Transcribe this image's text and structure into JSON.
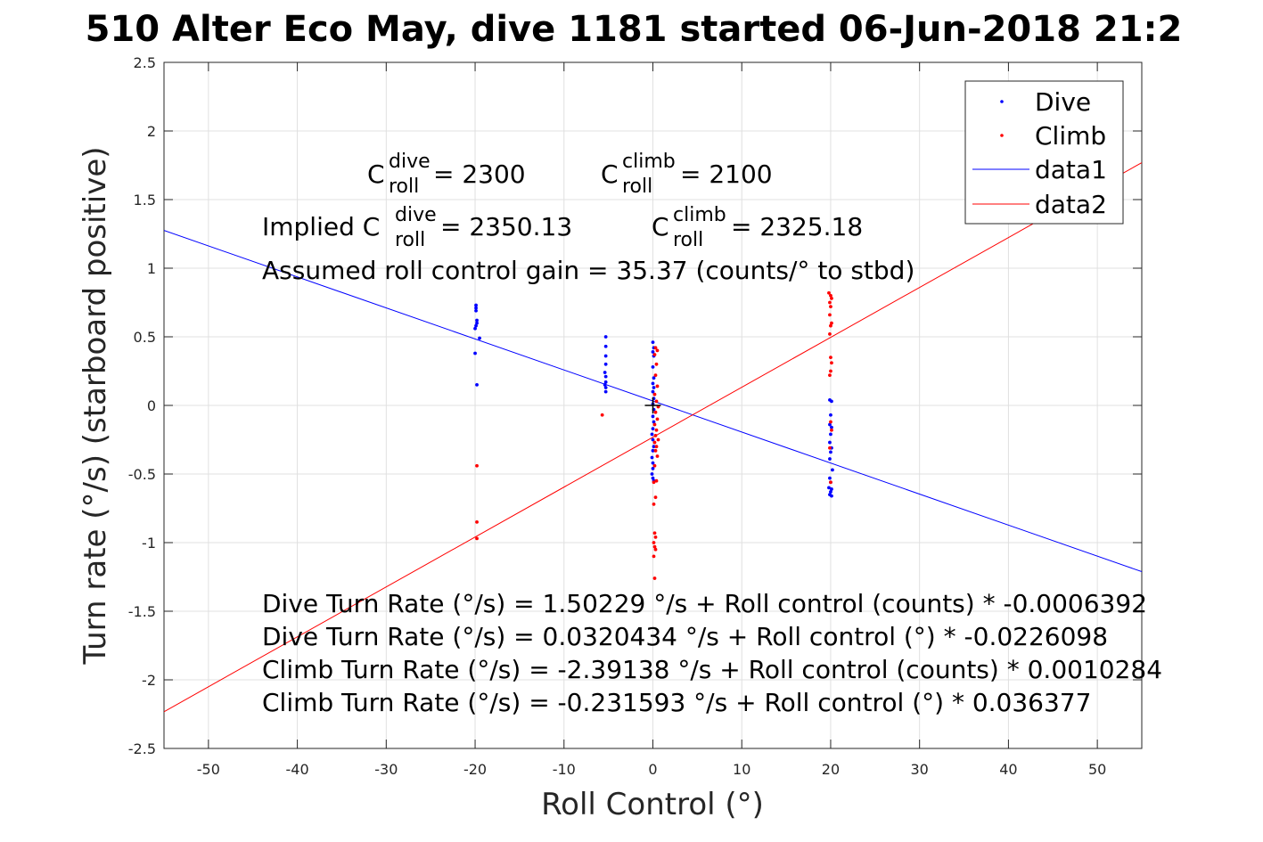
{
  "chart_data": {
    "type": "scatter",
    "title": "510 Alter Eco May, dive 1181 started 06-Jun-2018 21:2",
    "xlabel": "Roll Control (°)",
    "ylabel": "Turn rate (°/s) (starboard positive)",
    "xlim": [
      -55,
      55
    ],
    "ylim": [
      -2.5,
      2.5
    ],
    "xticks": [
      -50,
      -40,
      -30,
      -20,
      -10,
      0,
      10,
      20,
      30,
      40,
      50
    ],
    "yticks": [
      -2.5,
      -2,
      -1.5,
      -1,
      -0.5,
      0,
      0.5,
      1,
      1.5,
      2,
      2.5
    ],
    "grid": true,
    "legend_position": "top-right",
    "legend": [
      "Dive",
      "Climb",
      "data1",
      "data2"
    ],
    "colors": {
      "dive": "#0000ff",
      "climb": "#ff0000",
      "axis": "#262626",
      "grid": "#e0e0e0"
    },
    "series": [
      {
        "name": "Dive",
        "kind": "points",
        "points": [
          [
            -19.9,
            0.73
          ],
          [
            -19.9,
            0.71
          ],
          [
            -19.9,
            0.69
          ],
          [
            -19.8,
            0.62
          ],
          [
            -19.8,
            0.6
          ],
          [
            -19.9,
            0.58
          ],
          [
            -20.0,
            0.56
          ],
          [
            -19.5,
            0.49
          ],
          [
            -20.0,
            0.38
          ],
          [
            -19.8,
            0.15
          ],
          [
            -5.3,
            0.5
          ],
          [
            -5.3,
            0.43
          ],
          [
            -5.3,
            0.36
          ],
          [
            -5.3,
            0.3
          ],
          [
            -5.4,
            0.24
          ],
          [
            -5.3,
            0.21
          ],
          [
            -5.3,
            0.17
          ],
          [
            -5.4,
            0.15
          ],
          [
            -5.3,
            0.13
          ],
          [
            -5.3,
            0.1
          ],
          [
            0,
            0.46
          ],
          [
            0.1,
            0.42
          ],
          [
            0,
            0.39
          ],
          [
            0.1,
            0.36
          ],
          [
            0,
            0.28
          ],
          [
            0.1,
            0.2
          ],
          [
            0,
            0.16
          ],
          [
            0.1,
            0.13
          ],
          [
            0,
            0.1
          ],
          [
            0.1,
            0.05
          ],
          [
            0,
            0.01
          ],
          [
            0.1,
            -0.03
          ],
          [
            0,
            -0.08
          ],
          [
            0.1,
            -0.12
          ],
          [
            0,
            -0.17
          ],
          [
            -0.1,
            -0.21
          ],
          [
            0,
            -0.25
          ],
          [
            0.1,
            -0.3
          ],
          [
            0,
            -0.33
          ],
          [
            -0.1,
            -0.38
          ],
          [
            0,
            -0.42
          ],
          [
            0,
            -0.46
          ],
          [
            -0.1,
            -0.5
          ],
          [
            0,
            -0.53
          ],
          [
            0.1,
            -0.55
          ],
          [
            19.9,
            0.04
          ],
          [
            20.1,
            0.03
          ],
          [
            20.0,
            -0.07
          ],
          [
            19.9,
            -0.14
          ],
          [
            20.1,
            -0.16
          ],
          [
            20.0,
            -0.21
          ],
          [
            19.9,
            -0.27
          ],
          [
            20.1,
            -0.31
          ],
          [
            20.0,
            -0.34
          ],
          [
            19.9,
            -0.39
          ],
          [
            20.2,
            -0.47
          ],
          [
            19.9,
            -0.53
          ],
          [
            20.0,
            -0.56
          ],
          [
            19.8,
            -0.6
          ],
          [
            20.1,
            -0.61
          ],
          [
            20.0,
            -0.63
          ],
          [
            19.9,
            -0.65
          ],
          [
            20.1,
            -0.66
          ]
        ]
      },
      {
        "name": "Climb",
        "kind": "points",
        "points": [
          [
            -19.8,
            -0.44
          ],
          [
            -19.8,
            -0.85
          ],
          [
            -19.8,
            -0.97
          ],
          [
            -5.7,
            -0.07
          ],
          [
            0.3,
            0.42
          ],
          [
            0.5,
            0.4
          ],
          [
            0.2,
            0.37
          ],
          [
            0.4,
            0.3
          ],
          [
            0.3,
            0.22
          ],
          [
            0.5,
            0.14
          ],
          [
            0.2,
            0.08
          ],
          [
            0.4,
            0.03
          ],
          [
            0.6,
            -0.01
          ],
          [
            0.3,
            -0.05
          ],
          [
            0.5,
            -0.1
          ],
          [
            0.2,
            -0.14
          ],
          [
            0.4,
            -0.18
          ],
          [
            0.3,
            -0.22
          ],
          [
            0.6,
            -0.25
          ],
          [
            0.2,
            -0.27
          ],
          [
            0.4,
            -0.3
          ],
          [
            0.3,
            -0.33
          ],
          [
            0.5,
            -0.37
          ],
          [
            0.2,
            -0.44
          ],
          [
            0.4,
            -0.55
          ],
          [
            0.1,
            -0.56
          ],
          [
            0.3,
            -0.67
          ],
          [
            0.1,
            -0.72
          ],
          [
            0.2,
            -0.93
          ],
          [
            0.3,
            -0.96
          ],
          [
            0.1,
            -1.0
          ],
          [
            0.2,
            -1.03
          ],
          [
            0.3,
            -1.05
          ],
          [
            0.1,
            -1.1
          ],
          [
            0.2,
            -1.26
          ],
          [
            19.8,
            0.82
          ],
          [
            20.0,
            0.8
          ],
          [
            20.1,
            0.78
          ],
          [
            19.9,
            0.75
          ],
          [
            20.0,
            0.72
          ],
          [
            19.9,
            0.66
          ],
          [
            20.1,
            0.6
          ],
          [
            20.0,
            0.58
          ],
          [
            19.9,
            0.52
          ],
          [
            20.0,
            0.35
          ],
          [
            20.1,
            0.31
          ],
          [
            20.0,
            0.25
          ],
          [
            19.9,
            0.22
          ],
          [
            20.0,
            -0.12
          ],
          [
            20.1,
            -0.18
          ],
          [
            19.9,
            -0.31
          ],
          [
            20.0,
            -0.56
          ]
        ]
      },
      {
        "name": "data1",
        "kind": "line",
        "points": [
          [
            -55,
            1.2756
          ],
          [
            55,
            -1.2115
          ]
        ]
      },
      {
        "name": "data2",
        "kind": "line",
        "points": [
          [
            -55,
            -2.2323
          ],
          [
            55,
            1.7691
          ]
        ]
      }
    ],
    "marker": {
      "type": "plus",
      "x": 0,
      "y": 0
    },
    "annotations": {
      "c_dive": {
        "prefix": "C",
        "sup": "dive",
        "sub": "roll",
        "value": " = 2300"
      },
      "c_climb": {
        "prefix": "C",
        "sup": "climb",
        "sub": "roll",
        "value": " = 2100"
      },
      "implied_dive": {
        "lead": "Implied C",
        "sup": "dive",
        "sub": "roll",
        "value": " = 2350.13"
      },
      "implied_climb": {
        "prefix": "C",
        "sup": "climb",
        "sub": "roll",
        "value": " = 2325.18"
      },
      "gain": "Assumed roll control gain = 35.37 (counts/° to stbd)",
      "equations": [
        "Dive Turn Rate (°/s) = 1.50229 °/s + Roll control (counts) * -0.0006392",
        "Dive Turn Rate (°/s) = 0.0320434 °/s + Roll control (°) * -0.0226098",
        "Climb Turn Rate (°/s) = -2.39138 °/s + Roll control (counts) * 0.0010284",
        "Climb Turn Rate (°/s) = -0.231593 °/s + Roll control (°) * 0.036377"
      ]
    }
  }
}
